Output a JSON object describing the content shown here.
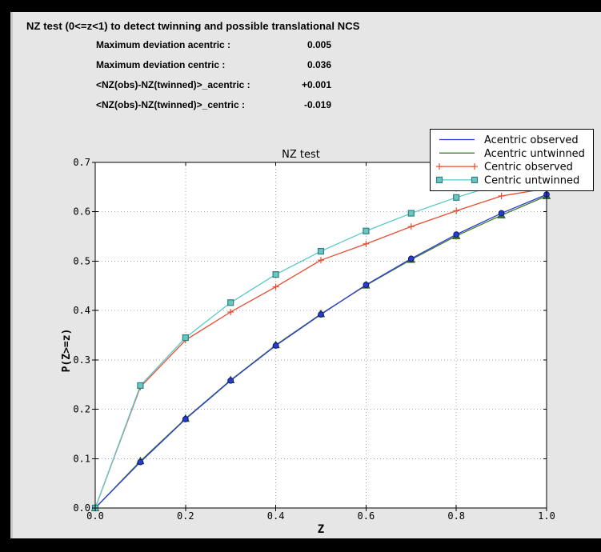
{
  "header": {
    "title": "NZ test (0<=z<1) to detect twinning and possible translational NCS"
  },
  "stats": {
    "rows": [
      {
        "label": "Maximum deviation acentric :",
        "value": "0.005"
      },
      {
        "label": "Maximum deviation centric :",
        "value": "0.036"
      },
      {
        "label": "<NZ(obs)-NZ(twinned)>_acentric :",
        "value": "+0.001"
      },
      {
        "label": "<NZ(obs)-NZ(twinned)>_centric :",
        "value": "-0.019"
      }
    ]
  },
  "chart_data": {
    "type": "line",
    "title": "NZ test",
    "xlabel": "Z",
    "ylabel": "P(Z>=z)",
    "xlim": [
      0.0,
      1.0
    ],
    "ylim": [
      0.0,
      0.7
    ],
    "xticks": [
      0.0,
      0.2,
      0.4,
      0.6,
      0.8,
      1.0
    ],
    "yticks": [
      0.0,
      0.1,
      0.2,
      0.3,
      0.4,
      0.5,
      0.6,
      0.7
    ],
    "grid": true,
    "legend_position": "upper right",
    "x": [
      0.0,
      0.1,
      0.2,
      0.3,
      0.4,
      0.5,
      0.6,
      0.7,
      0.8,
      0.9,
      1.0
    ],
    "series": [
      {
        "name": "Acentric observed",
        "color": "#2a3cce",
        "marker": "circle",
        "marker_fill": "#2a3cce",
        "marker_edge": "#0d1a70",
        "values": [
          0.0,
          0.093,
          0.18,
          0.258,
          0.329,
          0.392,
          0.452,
          0.505,
          0.554,
          0.597,
          0.635
        ]
      },
      {
        "name": "Acentric untwinned",
        "color": "#3f7d28",
        "marker": "triangle",
        "marker_fill": "#4a8c2c",
        "marker_edge": "#1d5212",
        "values": [
          0.0,
          0.095,
          0.181,
          0.259,
          0.33,
          0.393,
          0.451,
          0.503,
          0.551,
          0.593,
          0.632
        ]
      },
      {
        "name": "Centric observed",
        "color": "#e74c30",
        "marker": "plus",
        "marker_fill": "#e74c30",
        "marker_edge": "#e74c30",
        "values": [
          0.0,
          0.245,
          0.34,
          0.397,
          0.448,
          0.502,
          0.535,
          0.57,
          0.602,
          0.632,
          0.647
        ]
      },
      {
        "name": "Centric untwinned",
        "color": "#58c9c9",
        "marker": "square",
        "marker_fill": "#6cc6c0",
        "marker_edge": "#2e8181",
        "values": [
          0.0,
          0.248,
          0.345,
          0.416,
          0.473,
          0.52,
          0.561,
          0.597,
          0.629,
          0.657,
          0.683
        ]
      }
    ],
    "colors": {
      "plot_background": "#ffffff",
      "figure_background": "#e6e6e6",
      "grid": "#a6a6a6",
      "frame": "#000000",
      "legend_background": "#ffffff",
      "legend_border": "#000000",
      "text": "#000000"
    }
  }
}
